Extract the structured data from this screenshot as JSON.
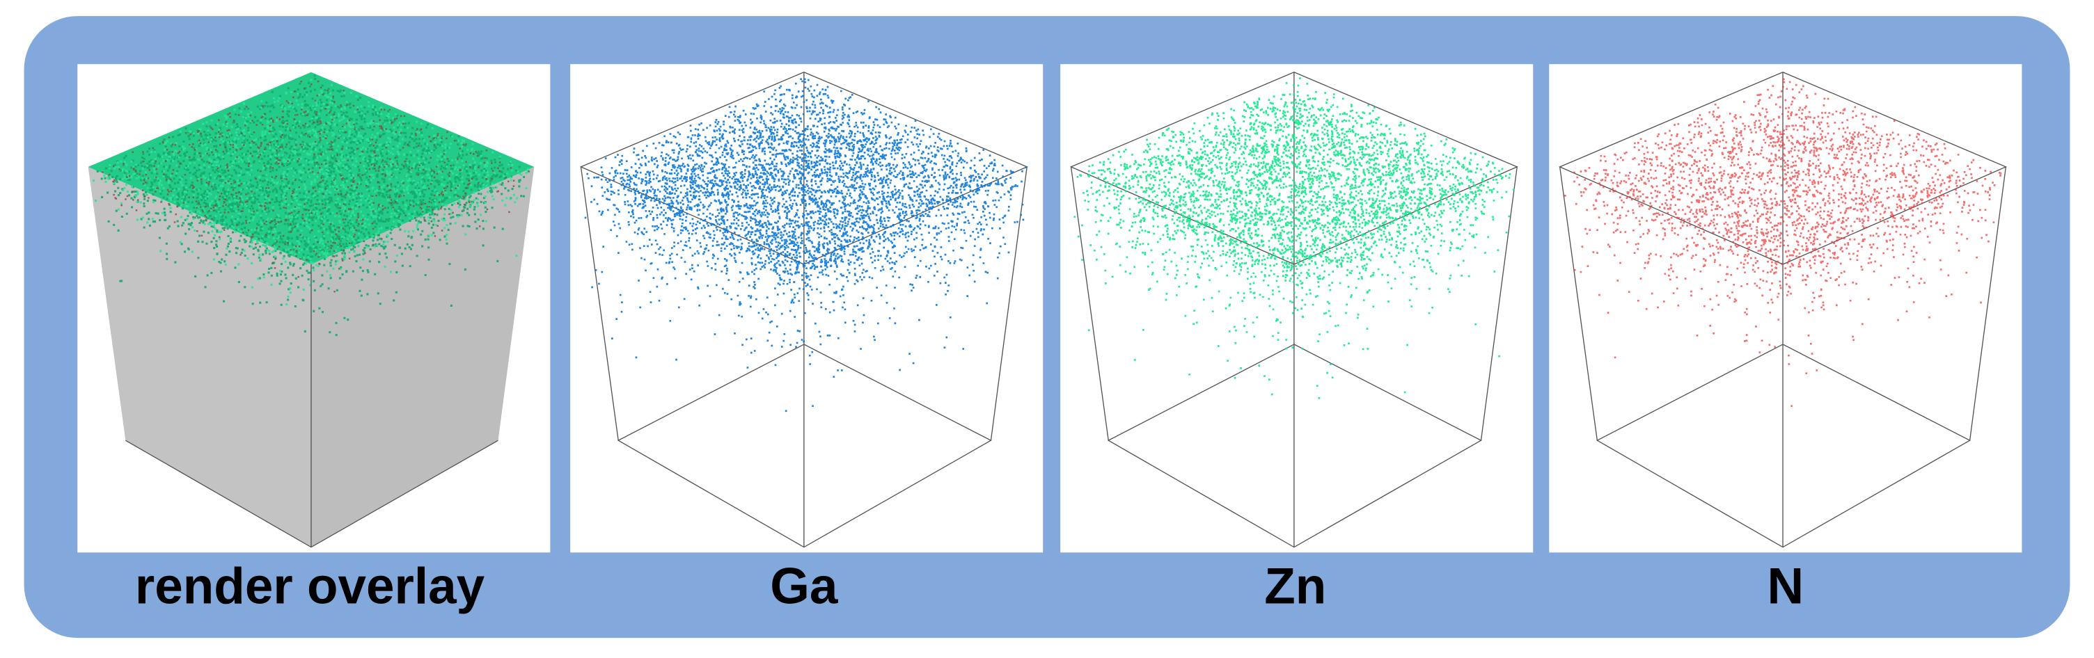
{
  "panels": [
    {
      "label": "render overlay"
    },
    {
      "label": "Ga"
    },
    {
      "label": "Zn"
    },
    {
      "label": "N"
    }
  ]
}
